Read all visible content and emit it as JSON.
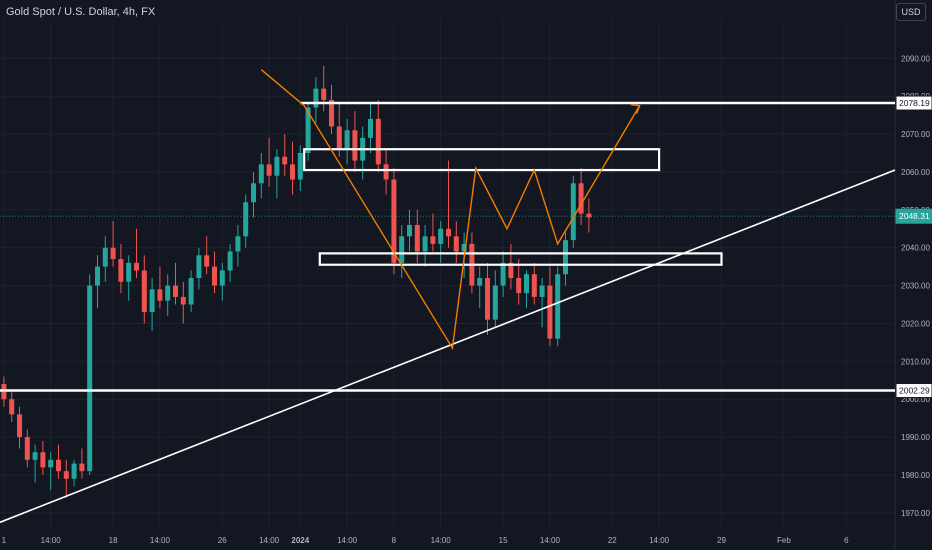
{
  "header": {
    "symbol_title": "Gold Spot / U.S. Dollar, 4h, FX",
    "currency_button": "USD"
  },
  "chart_data": {
    "type": "candlestick",
    "title": "Gold Spot / U.S. Dollar, 4h, FX",
    "ylim": [
      1966,
      2098
    ],
    "y_ticks": [
      1970,
      1980,
      1990,
      2000,
      2010,
      2020,
      2030,
      2040,
      2050,
      2060,
      2070,
      2080,
      2090
    ],
    "y_tick_labels": [
      "1970.00",
      "1980.00",
      "1990.00",
      "2000.00",
      "2010.00",
      "2020.00",
      "2030.00",
      "2040.00",
      "2050.00",
      "2060.00",
      "2070.00",
      "2080.00",
      "2090.00"
    ],
    "x_ticks": [
      "1",
      "14:00",
      "18",
      "14:00",
      "26",
      "14:00",
      "2024",
      "14:00",
      "8",
      "14:00",
      "15",
      "14:00",
      "22",
      "14:00",
      "29",
      "Feb",
      "6"
    ],
    "x_tick_positions": [
      0,
      6,
      14,
      20,
      28,
      34,
      38,
      44,
      50,
      56,
      64,
      70,
      78,
      84,
      92,
      100,
      108
    ],
    "n_slots": 120,
    "colors": {
      "up": "#26a69a",
      "down": "#ef5350",
      "background": "#131722",
      "grid": "#1e222d",
      "annotation": "#ffffff",
      "projection": "#f57c00"
    },
    "candles": [
      [
        2004,
        2006,
        1998,
        2000
      ],
      [
        2000,
        2002,
        1994,
        1996
      ],
      [
        1996,
        1998,
        1987,
        1990
      ],
      [
        1990,
        1992,
        1982,
        1984
      ],
      [
        1984,
        1988,
        1978,
        1986
      ],
      [
        1986,
        1989,
        1980,
        1982
      ],
      [
        1982,
        1986,
        1976,
        1984
      ],
      [
        1984,
        1988,
        1979,
        1981
      ],
      [
        1981,
        1984,
        1974,
        1979
      ],
      [
        1979,
        1984,
        1977,
        1983
      ],
      [
        1983,
        1987,
        1979,
        1981
      ],
      [
        1981,
        2033,
        1980,
        2030
      ],
      [
        2030,
        2038,
        2024,
        2035
      ],
      [
        2035,
        2043,
        2031,
        2040
      ],
      [
        2040,
        2047,
        2035,
        2037
      ],
      [
        2037,
        2041,
        2028,
        2031
      ],
      [
        2031,
        2038,
        2026,
        2036
      ],
      [
        2036,
        2045,
        2032,
        2034
      ],
      [
        2034,
        2038,
        2020,
        2023
      ],
      [
        2023,
        2032,
        2018,
        2029
      ],
      [
        2029,
        2035,
        2024,
        2026
      ],
      [
        2026,
        2033,
        2022,
        2030
      ],
      [
        2030,
        2036,
        2025,
        2027
      ],
      [
        2027,
        2031,
        2020,
        2025
      ],
      [
        2025,
        2034,
        2023,
        2032
      ],
      [
        2032,
        2040,
        2029,
        2038
      ],
      [
        2038,
        2043,
        2033,
        2035
      ],
      [
        2035,
        2039,
        2028,
        2030
      ],
      [
        2030,
        2036,
        2026,
        2034
      ],
      [
        2034,
        2041,
        2031,
        2039
      ],
      [
        2039,
        2046,
        2035,
        2043
      ],
      [
        2043,
        2054,
        2040,
        2052
      ],
      [
        2052,
        2060,
        2048,
        2057
      ],
      [
        2057,
        2065,
        2053,
        2062
      ],
      [
        2062,
        2069,
        2056,
        2059
      ],
      [
        2059,
        2066,
        2053,
        2064
      ],
      [
        2064,
        2070,
        2059,
        2062
      ],
      [
        2062,
        2068,
        2054,
        2058
      ],
      [
        2058,
        2067,
        2055,
        2065
      ],
      [
        2065,
        2078,
        2063,
        2077
      ],
      [
        2077,
        2085,
        2073,
        2082
      ],
      [
        2082,
        2088,
        2076,
        2079
      ],
      [
        2079,
        2083,
        2070,
        2072
      ],
      [
        2072,
        2078,
        2064,
        2066
      ],
      [
        2066,
        2074,
        2062,
        2071
      ],
      [
        2071,
        2076,
        2060,
        2063
      ],
      [
        2063,
        2072,
        2058,
        2069
      ],
      [
        2069,
        2078,
        2065,
        2074
      ],
      [
        2074,
        2079,
        2060,
        2062
      ],
      [
        2062,
        2066,
        2054,
        2058
      ],
      [
        2058,
        2061,
        2033,
        2036
      ],
      [
        2036,
        2046,
        2032,
        2043
      ],
      [
        2043,
        2050,
        2039,
        2046
      ],
      [
        2046,
        2050,
        2036,
        2039
      ],
      [
        2039,
        2046,
        2035,
        2043
      ],
      [
        2043,
        2049,
        2039,
        2041
      ],
      [
        2041,
        2047,
        2036,
        2045
      ],
      [
        2045,
        2063,
        2040,
        2043
      ],
      [
        2043,
        2047,
        2036,
        2039
      ],
      [
        2039,
        2044,
        2032,
        2041
      ],
      [
        2041,
        2044,
        2028,
        2030
      ],
      [
        2030,
        2035,
        2024,
        2032
      ],
      [
        2032,
        2036,
        2017,
        2021
      ],
      [
        2021,
        2034,
        2019,
        2030
      ],
      [
        2030,
        2039,
        2027,
        2036
      ],
      [
        2036,
        2041,
        2029,
        2032
      ],
      [
        2032,
        2037,
        2025,
        2028
      ],
      [
        2028,
        2034,
        2024,
        2033
      ],
      [
        2033,
        2036,
        2025,
        2027
      ],
      [
        2027,
        2032,
        2019,
        2030
      ],
      [
        2030,
        2035,
        2014,
        2016
      ],
      [
        2016,
        2035,
        2014,
        2033
      ],
      [
        2033,
        2044,
        2030,
        2042
      ],
      [
        2042,
        2059,
        2040,
        2057
      ],
      [
        2057,
        2061,
        2046,
        2049
      ],
      [
        2049,
        2053,
        2044,
        2048
      ]
    ],
    "horizontal_levels": [
      {
        "value": 2078.19,
        "label": "2078.19"
      },
      {
        "value": 2002.29,
        "label": "2002.29"
      }
    ],
    "current_price": {
      "value": 2048.31,
      "label": "2048.31"
    },
    "zones": [
      {
        "x0": 38.5,
        "x1": 84,
        "y0": 2060.5,
        "y1": 2066
      },
      {
        "x0": 40.5,
        "x1": 92,
        "y0": 2035.5,
        "y1": 2038.5
      }
    ],
    "trendline": {
      "x0": 0,
      "y0": 1967.5,
      "x1": 120,
      "y1": 2060.5
    },
    "top_line": {
      "x0": 38,
      "x1": 120,
      "y": 2078.19
    },
    "projection_path": [
      [
        33,
        2087
      ],
      [
        38.5,
        2077.5
      ],
      [
        57.5,
        2013.5
      ],
      [
        60.5,
        2061
      ],
      [
        64.5,
        2045
      ],
      [
        68,
        2060.5
      ],
      [
        71,
        2041
      ],
      [
        81.5,
        2077.5
      ]
    ],
    "projection_arrow": {
      "x": 81.5,
      "y": 2077.5
    }
  }
}
